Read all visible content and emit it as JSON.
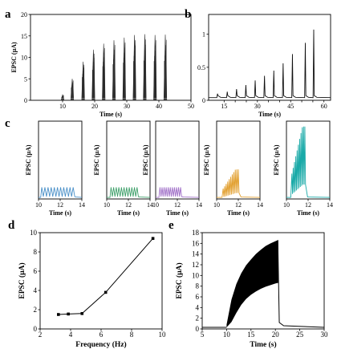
{
  "chart_data": [
    {
      "panel": "a",
      "type": "line",
      "xlabel": "Time (s)",
      "ylabel": "EPSC (μA)",
      "xlim": [
        0,
        50
      ],
      "ylim": [
        0,
        20
      ],
      "xticks": [
        10,
        20,
        30,
        40,
        50
      ],
      "yticks": [
        0,
        5,
        10,
        15,
        20
      ],
      "color": "#333333",
      "bursts": [
        {
          "t": 10.0,
          "peak": 1.3
        },
        {
          "t": 13.0,
          "peak": 5.0
        },
        {
          "t": 16.4,
          "peak": 9.0
        },
        {
          "t": 19.6,
          "peak": 11.8
        },
        {
          "t": 22.8,
          "peak": 13.2
        },
        {
          "t": 26.0,
          "peak": 14.0
        },
        {
          "t": 29.2,
          "peak": 14.6
        },
        {
          "t": 32.4,
          "peak": 15.2
        },
        {
          "t": 35.6,
          "peak": 15.4
        },
        {
          "t": 38.8,
          "peak": 15.2
        },
        {
          "t": 42.0,
          "peak": 15.3
        }
      ]
    },
    {
      "panel": "b",
      "type": "line",
      "xlabel": "Time (s)",
      "ylabel": "EPSC (μA)",
      "xlim": [
        8,
        63
      ],
      "ylim": [
        0,
        1.3
      ],
      "xticks": [
        15,
        30,
        45,
        60
      ],
      "xticklabels": [
        "15",
        "20",
        "25",
        "30",
        "35",
        "40",
        "45",
        "50",
        "55",
        "60"
      ],
      "xticklabel_values": [
        15,
        20,
        25,
        30,
        35,
        40,
        45,
        50,
        55,
        60
      ],
      "yticks": [
        0,
        0.5,
        1.0
      ],
      "yticklabels": [
        "0",
        "0.5",
        "1"
      ],
      "color": "#111111",
      "baseline": 0.04,
      "spikes": [
        {
          "t": 12.0,
          "peak": 0.1
        },
        {
          "t": 16.4,
          "peak": 0.13
        },
        {
          "t": 20.6,
          "peak": 0.17
        },
        {
          "t": 24.8,
          "peak": 0.23
        },
        {
          "t": 29.0,
          "peak": 0.3
        },
        {
          "t": 33.2,
          "peak": 0.37
        },
        {
          "t": 37.4,
          "peak": 0.45
        },
        {
          "t": 41.6,
          "peak": 0.56
        },
        {
          "t": 45.8,
          "peak": 0.7
        },
        {
          "t": 51.6,
          "peak": 0.87
        },
        {
          "t": 55.4,
          "peak": 1.07
        }
      ]
    },
    {
      "panel": "c1",
      "type": "line",
      "xlabel": "Time (s)",
      "ylabel": "EPSC (μA)",
      "xlim": [
        10,
        14
      ],
      "ylim": [
        0,
        10
      ],
      "xticks": [
        10,
        12,
        14
      ],
      "color": "#4a90c8",
      "burst": {
        "start": 10.3,
        "end": 13.2,
        "pulses": 11,
        "peak": 1.5
      }
    },
    {
      "panel": "c2",
      "type": "line",
      "xlabel": "Time (s)",
      "ylabel": "EPSC (μA)",
      "xlim": [
        10,
        14
      ],
      "ylim": [
        0,
        10
      ],
      "xticks": [
        10,
        12,
        14
      ],
      "color": "#3fa06a",
      "burst": {
        "start": 10.4,
        "end": 12.8,
        "pulses": 11,
        "peak": 1.5
      }
    },
    {
      "panel": "c3",
      "type": "line",
      "xlabel": "Time (s)",
      "ylabel": "EPSC (μA)",
      "xlim": [
        10,
        14
      ],
      "ylim": [
        0,
        10
      ],
      "xticks": [
        10,
        12,
        14
      ],
      "color": "#a070c8",
      "burst": {
        "start": 10.4,
        "end": 12.3,
        "pulses": 11,
        "peak": 1.5
      }
    },
    {
      "panel": "c4",
      "type": "line",
      "xlabel": "Time (s)",
      "ylabel": "EPSC (μA)",
      "xlim": [
        10,
        14
      ],
      "ylim": [
        0,
        10
      ],
      "xticks": [
        10,
        12,
        14
      ],
      "color": "#e2a030",
      "burst": {
        "start": 10.6,
        "end": 12.0,
        "pulses": 11,
        "peak": 3.8
      }
    },
    {
      "panel": "c5",
      "type": "line",
      "xlabel": "Time (s)",
      "ylabel": "EPSC (μA)",
      "xlim": [
        10,
        14
      ],
      "ylim": [
        0,
        10
      ],
      "xticks": [
        10,
        12,
        14
      ],
      "color": "#1aaaa8",
      "burst": {
        "start": 10.5,
        "end": 11.7,
        "pulses": 11,
        "peak": 9.3
      }
    },
    {
      "panel": "d",
      "type": "line",
      "xlabel": "Frequency (Hz)",
      "ylabel": "EPSC (μA)",
      "xlim": [
        2,
        10
      ],
      "ylim": [
        0,
        10
      ],
      "xticks": [
        2,
        4,
        6,
        8,
        10
      ],
      "yticks": [
        0,
        2,
        4,
        6,
        8,
        10
      ],
      "color": "#000000",
      "x": [
        3.2,
        3.85,
        4.75,
        6.3,
        9.4
      ],
      "y": [
        1.5,
        1.55,
        1.6,
        3.8,
        9.4
      ]
    },
    {
      "panel": "e",
      "type": "area",
      "xlabel": "Time (s)",
      "ylabel": "EPSC (μA)",
      "xlim": [
        5,
        30
      ],
      "ylim": [
        0,
        18
      ],
      "xticks": [
        5,
        10,
        15,
        20,
        25,
        30
      ],
      "yticks": [
        0,
        2,
        4,
        6,
        8,
        10,
        12,
        14,
        16,
        18
      ],
      "color": "#000000",
      "baseline": 0.3,
      "stim_start": 10.0,
      "stim_end": 20.5,
      "envelope_upper": {
        "x": [
          10.0,
          11,
          12,
          13,
          14,
          15,
          16,
          17,
          18,
          19,
          20,
          20.5
        ],
        "y": [
          0.8,
          5.5,
          8.4,
          10.4,
          11.9,
          13.0,
          14.0,
          14.8,
          15.5,
          16.0,
          16.4,
          16.6
        ]
      },
      "envelope_lower": {
        "x": [
          10.0,
          11,
          12,
          13,
          14,
          15,
          16,
          17,
          18,
          19,
          20,
          20.5
        ],
        "y": [
          0.3,
          1.3,
          3.0,
          4.5,
          5.6,
          6.4,
          7.0,
          7.5,
          7.9,
          8.2,
          8.5,
          8.6
        ]
      }
    }
  ]
}
